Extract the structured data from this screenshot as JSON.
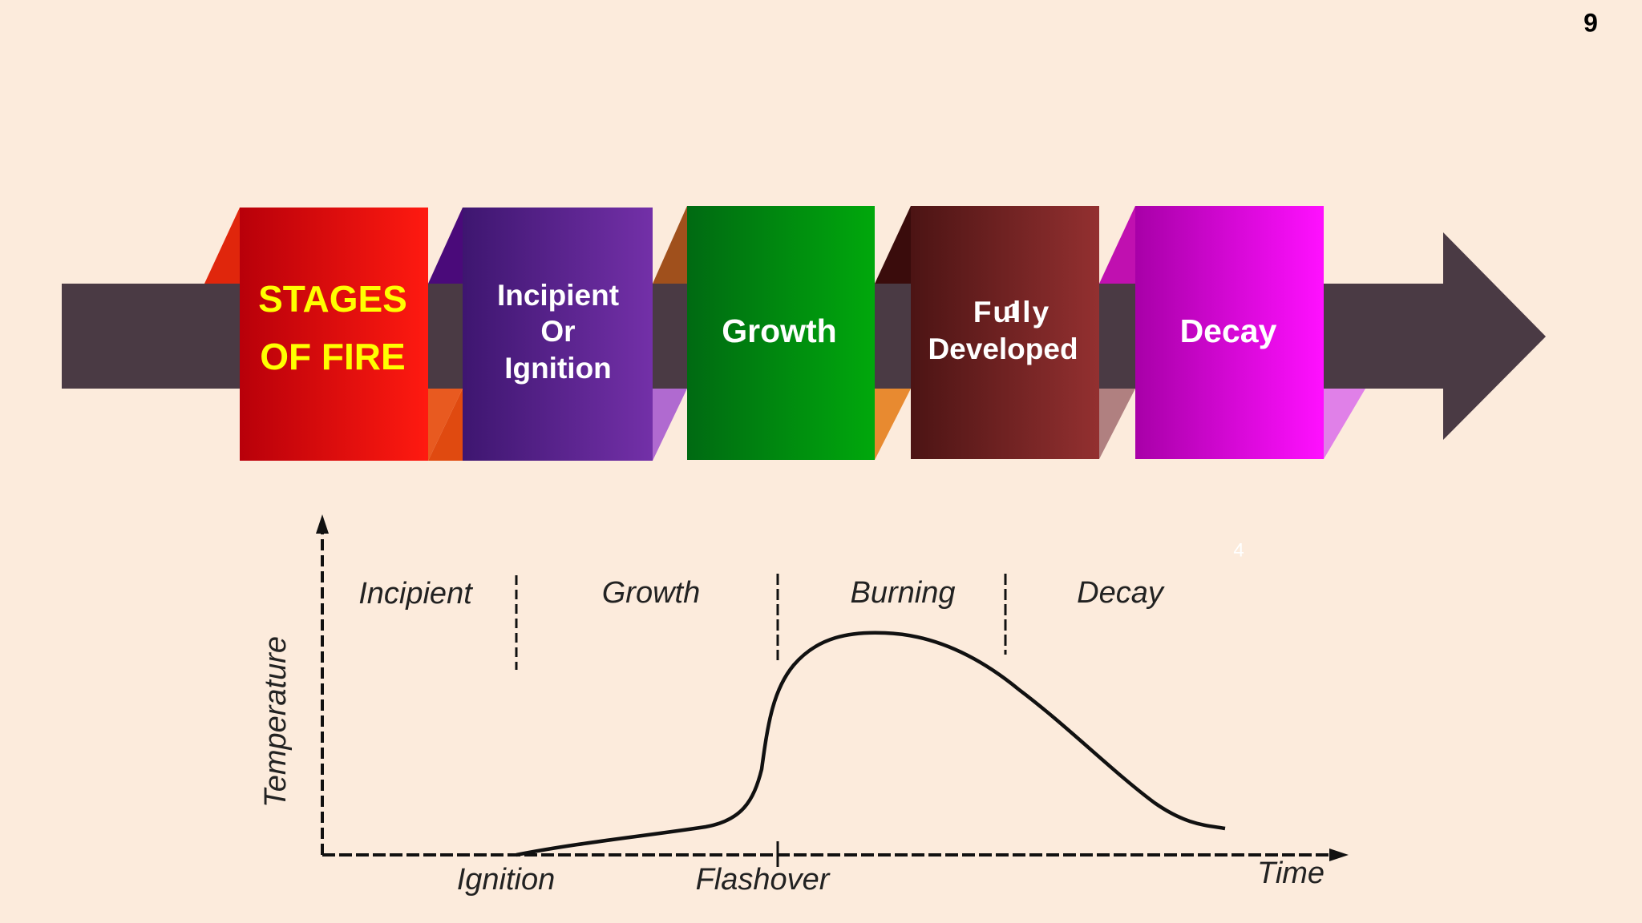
{
  "slide_number": "9",
  "banner": {
    "title_lines": [
      "STAGES",
      "OF FIRE"
    ],
    "stages": [
      {
        "lines": [
          "Incipient",
          "Or",
          "Ignition"
        ]
      },
      {
        "lines": [
          "Growth"
        ]
      },
      {
        "lines": [
          "Fully",
          "Developed"
        ]
      },
      {
        "lines": [
          "Decay"
        ]
      }
    ],
    "overlay_mark": "1"
  },
  "graph": {
    "y_axis_label": "Temperature",
    "x_axis_label": "Time",
    "phases": [
      "Incipient",
      "Growth",
      "Burning",
      "Decay"
    ],
    "events": [
      "Ignition",
      "Flashover"
    ],
    "overlay_mark": "4"
  }
}
